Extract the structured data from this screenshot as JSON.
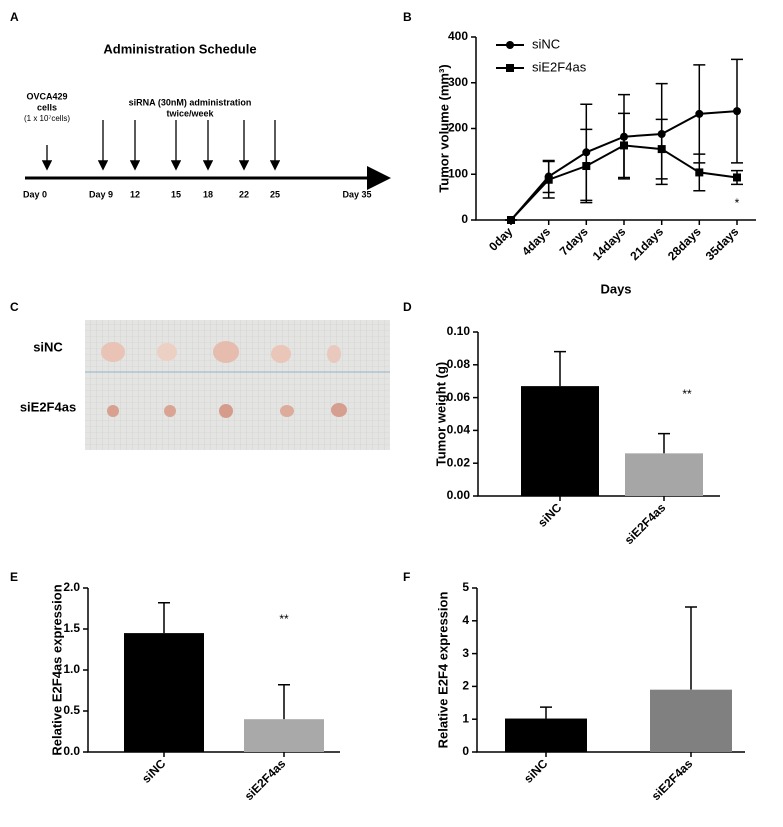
{
  "panel_labels": [
    "A",
    "B",
    "C",
    "D",
    "E",
    "F"
  ],
  "schedule": {
    "title": "Administration Schedule",
    "cell_line": "OVCA429",
    "cells_word": "cells",
    "cell_count": "(1 x 10⁷cells)",
    "treatment": "siRNA (30nM) administration",
    "frequency": "twice/week",
    "days": [
      "Day 0",
      "Day 9",
      "12",
      "15",
      "18",
      "22",
      "25",
      "Day 35"
    ]
  },
  "photo": {
    "row_labels": [
      "siNC",
      "siE2F4as"
    ]
  },
  "chart_data": [
    {
      "type": "line",
      "x_label": "Days",
      "y_label": "Tumor volume (mm³)",
      "categories": [
        "0day",
        "4days",
        "7days",
        "14days",
        "21days",
        "28days",
        "35days"
      ],
      "series": [
        {
          "name": "siNC",
          "color": "#000000",
          "marker": "circle",
          "values": [
            0,
            95,
            148,
            182,
            188,
            232,
            238
          ],
          "errors": [
            0,
            35,
            105,
            92,
            110,
            107,
            113
          ]
        },
        {
          "name": "siE2F4as",
          "color": "#000000",
          "marker": "square",
          "values": [
            0,
            88,
            118,
            163,
            155,
            104,
            93
          ],
          "errors": [
            0,
            40,
            80,
            70,
            65,
            40,
            15
          ]
        }
      ],
      "ylim": [
        0,
        400
      ],
      "yticks": [
        0,
        100,
        200,
        300,
        400
      ],
      "annotation": "*",
      "legend": "top-left"
    },
    {
      "type": "bar",
      "y_label": "Tumor weight (g)",
      "categories": [
        "siNC",
        "siE2F4as"
      ],
      "values": [
        0.067,
        0.026
      ],
      "errors": [
        0.021,
        0.012
      ],
      "colors": [
        "#000000",
        "#a6a6a6"
      ],
      "ylim": [
        0,
        0.1
      ],
      "yticks": [
        {
          "value": 0,
          "label": "0.00"
        },
        {
          "value": 0.02,
          "label": "0.02"
        },
        {
          "value": 0.04,
          "label": "0.04"
        },
        {
          "value": 0.06,
          "label": "0.06"
        },
        {
          "value": 0.08,
          "label": "0.08"
        },
        {
          "value": 0.1,
          "label": "0.10"
        }
      ],
      "annotation": "**"
    },
    {
      "type": "bar",
      "y_label": "Relative E2F4as expression",
      "categories": [
        "siNC",
        "siE2F4as"
      ],
      "values": [
        1.45,
        0.4
      ],
      "errors": [
        0.37,
        0.42
      ],
      "colors": [
        "#000000",
        "#a9a9a9"
      ],
      "ylim": [
        0,
        2
      ],
      "yticks": [
        {
          "value": 0,
          "label": "0.0"
        },
        {
          "value": 0.5,
          "label": "0.5"
        },
        {
          "value": 1,
          "label": "1.0"
        },
        {
          "value": 1.5,
          "label": "1.5"
        },
        {
          "value": 2,
          "label": "2.0"
        }
      ],
      "annotation": "**"
    },
    {
      "type": "bar",
      "y_label": "Relative E2F4 expression",
      "categories": [
        "siNC",
        "siE2F4as"
      ],
      "values": [
        1.02,
        1.9
      ],
      "errors": [
        0.35,
        2.52
      ],
      "colors": [
        "#000000",
        "#808080"
      ],
      "ylim": [
        0,
        5
      ],
      "yticks": [
        0,
        1,
        2,
        3,
        4,
        5
      ]
    }
  ]
}
